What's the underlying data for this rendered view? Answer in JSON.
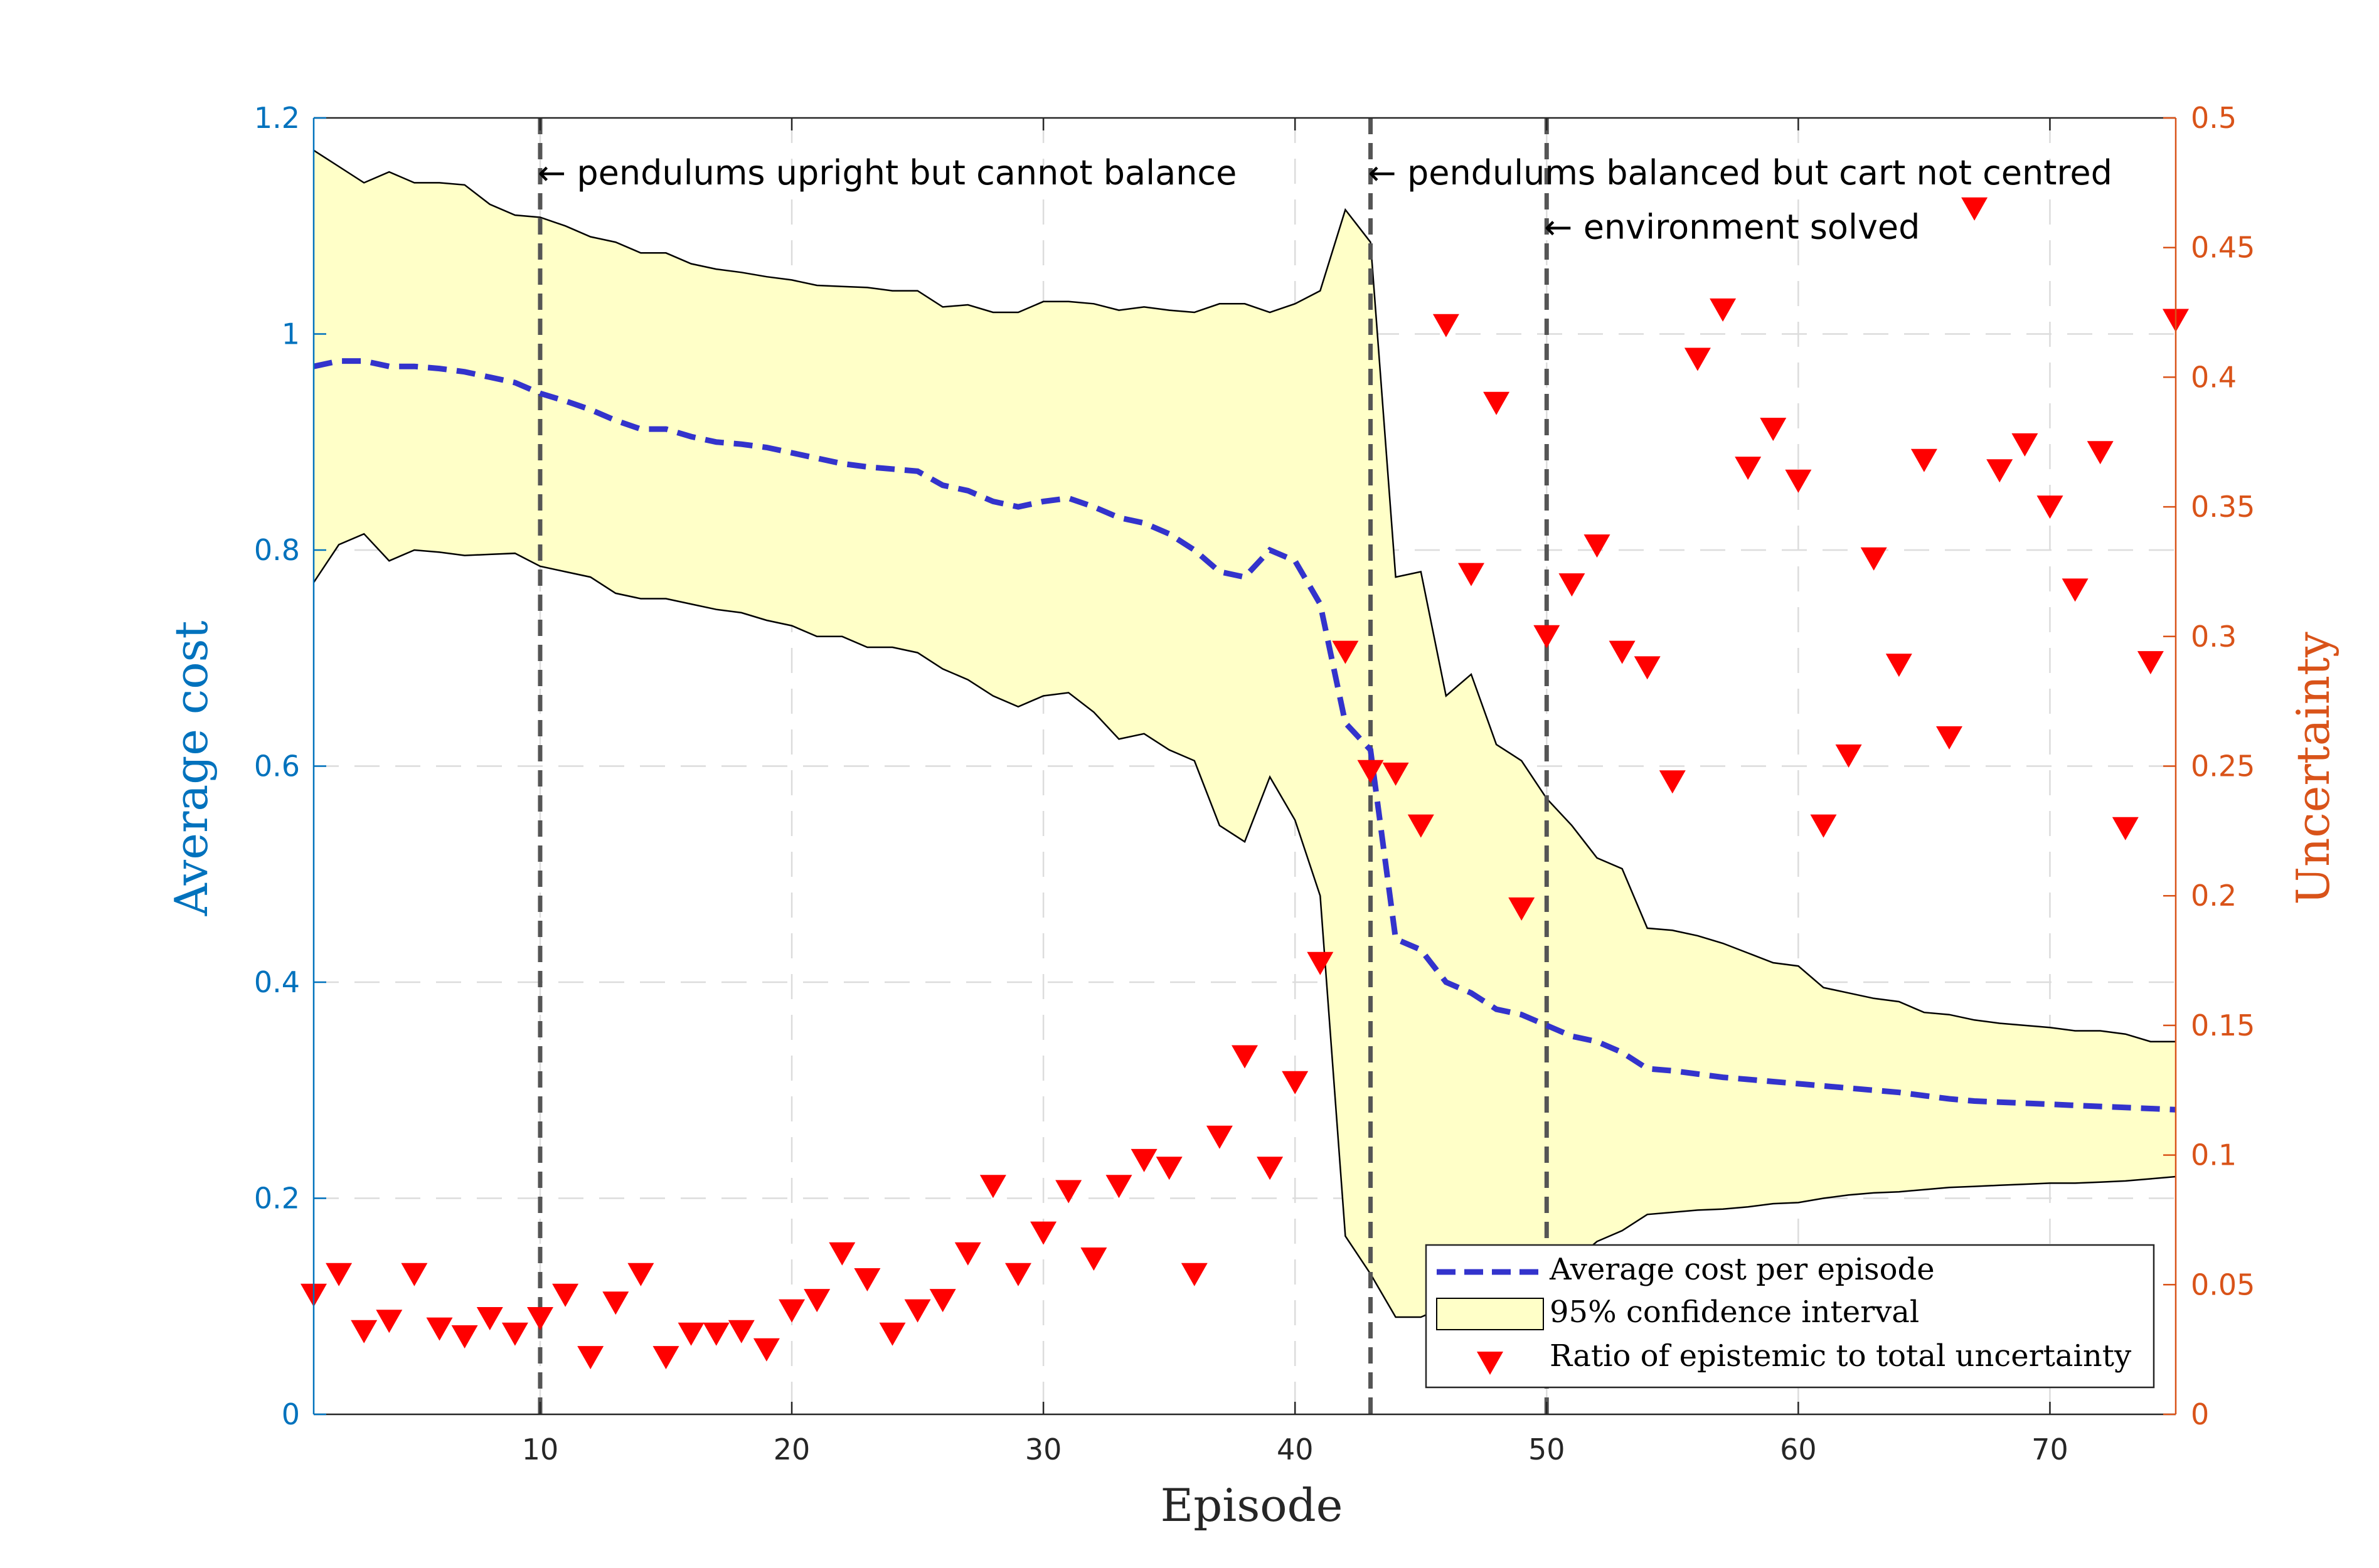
{
  "chart_data": {
    "type": "line",
    "xlabel": "Episode",
    "ylabel_left": "Average cost",
    "ylabel_right": "Uncertainty",
    "xlim": [
      1,
      75
    ],
    "ylim_left": [
      0,
      1.2
    ],
    "ylim_right": [
      0,
      0.5
    ],
    "x_ticks": [
      10,
      20,
      30,
      40,
      50,
      60,
      70
    ],
    "y_ticks_left": [
      "0",
      "0.2",
      "0.4",
      "0.6",
      "0.8",
      "1",
      "1.2"
    ],
    "y_ticks_right": [
      "0",
      "0.05",
      "0.1",
      "0.15",
      "0.2",
      "0.25",
      "0.3",
      "0.35",
      "0.4",
      "0.45",
      "0.5"
    ],
    "grid": true,
    "colors": {
      "mean": "#3333CC",
      "band_fill": "#FFFFC8",
      "markers": "#FF0000",
      "left_axis": "#0072BD",
      "right_axis": "#D95319",
      "vline": "#555555"
    },
    "vlines": [
      10,
      43,
      50
    ],
    "annotations": [
      {
        "x": 10,
        "y": 1.15,
        "text": "← pendulums upright but cannot balance"
      },
      {
        "x": 43,
        "y": 1.15,
        "text": "← pendulums balanced but cart not centred"
      },
      {
        "x": 50,
        "y": 1.1,
        "text": "← environment solved"
      }
    ],
    "legend_position": "bottom-right",
    "series": [
      {
        "name": "Average cost per episode",
        "axis": "left",
        "style": "dashed",
        "x": [
          1,
          2,
          3,
          4,
          5,
          6,
          7,
          8,
          9,
          10,
          11,
          12,
          13,
          14,
          15,
          16,
          17,
          18,
          19,
          20,
          21,
          22,
          23,
          24,
          25,
          26,
          27,
          28,
          29,
          30,
          31,
          32,
          33,
          34,
          35,
          36,
          37,
          38,
          39,
          40,
          41,
          42,
          43,
          44,
          45,
          46,
          47,
          48,
          49,
          50,
          51,
          52,
          53,
          54,
          55,
          56,
          57,
          58,
          59,
          60,
          61,
          62,
          63,
          64,
          65,
          66,
          67,
          68,
          69,
          70,
          71,
          72,
          73,
          74,
          75
        ],
        "values": [
          0.97,
          0.975,
          0.975,
          0.97,
          0.97,
          0.968,
          0.965,
          0.96,
          0.955,
          0.945,
          0.938,
          0.93,
          0.92,
          0.912,
          0.912,
          0.905,
          0.9,
          0.898,
          0.895,
          0.89,
          0.885,
          0.88,
          0.877,
          0.875,
          0.873,
          0.86,
          0.855,
          0.845,
          0.84,
          0.845,
          0.848,
          0.84,
          0.83,
          0.825,
          0.815,
          0.8,
          0.78,
          0.775,
          0.8,
          0.79,
          0.75,
          0.64,
          0.615,
          0.44,
          0.43,
          0.4,
          0.39,
          0.375,
          0.37,
          0.36,
          0.35,
          0.345,
          0.335,
          0.32,
          0.318,
          0.315,
          0.312,
          0.31,
          0.308,
          0.306,
          0.304,
          0.302,
          0.3,
          0.298,
          0.295,
          0.292,
          0.29,
          0.289,
          0.288,
          0.287,
          0.286,
          0.285,
          0.284,
          0.283,
          0.282
        ]
      },
      {
        "name": "95% confidence interval",
        "axis": "left",
        "style": "band",
        "x": [
          1,
          2,
          3,
          4,
          5,
          6,
          7,
          8,
          9,
          10,
          11,
          12,
          13,
          14,
          15,
          16,
          17,
          18,
          19,
          20,
          21,
          22,
          23,
          24,
          25,
          26,
          27,
          28,
          29,
          30,
          31,
          32,
          33,
          34,
          35,
          36,
          37,
          38,
          39,
          40,
          41,
          42,
          43,
          44,
          45,
          46,
          47,
          48,
          49,
          50,
          51,
          52,
          53,
          54,
          55,
          56,
          57,
          58,
          59,
          60,
          61,
          62,
          63,
          64,
          65,
          66,
          67,
          68,
          69,
          70,
          71,
          72,
          73,
          74,
          75
        ],
        "upper": [
          1.17,
          1.155,
          1.14,
          1.15,
          1.14,
          1.14,
          1.138,
          1.12,
          1.11,
          1.108,
          1.1,
          1.09,
          1.085,
          1.075,
          1.075,
          1.065,
          1.06,
          1.057,
          1.053,
          1.05,
          1.045,
          1.044,
          1.043,
          1.04,
          1.04,
          1.025,
          1.027,
          1.02,
          1.02,
          1.03,
          1.03,
          1.028,
          1.022,
          1.025,
          1.022,
          1.02,
          1.028,
          1.028,
          1.02,
          1.028,
          1.04,
          1.115,
          1.085,
          0.775,
          0.78,
          0.665,
          0.685,
          0.62,
          0.605,
          0.57,
          0.545,
          0.515,
          0.505,
          0.45,
          0.448,
          0.443,
          0.436,
          0.427,
          0.418,
          0.415,
          0.395,
          0.39,
          0.385,
          0.382,
          0.372,
          0.37,
          0.365,
          0.362,
          0.36,
          0.358,
          0.355,
          0.355,
          0.352,
          0.345,
          0.345
        ],
        "lower": [
          0.77,
          0.805,
          0.815,
          0.79,
          0.8,
          0.798,
          0.795,
          0.796,
          0.797,
          0.785,
          0.78,
          0.775,
          0.76,
          0.755,
          0.755,
          0.75,
          0.745,
          0.742,
          0.735,
          0.73,
          0.72,
          0.72,
          0.71,
          0.71,
          0.705,
          0.69,
          0.68,
          0.665,
          0.655,
          0.665,
          0.668,
          0.65,
          0.625,
          0.63,
          0.615,
          0.605,
          0.545,
          0.53,
          0.59,
          0.55,
          0.48,
          0.165,
          0.13,
          0.09,
          0.09,
          0.1,
          0.11,
          0.12,
          0.125,
          0.13,
          0.14,
          0.16,
          0.17,
          0.185,
          0.187,
          0.189,
          0.19,
          0.192,
          0.195,
          0.196,
          0.2,
          0.203,
          0.205,
          0.206,
          0.208,
          0.21,
          0.211,
          0.212,
          0.213,
          0.214,
          0.214,
          0.215,
          0.216,
          0.218,
          0.22
        ]
      },
      {
        "name": "Ratio of epistemic to total uncertainty",
        "axis": "right",
        "style": "markers",
        "x": [
          1,
          2,
          3,
          4,
          5,
          6,
          7,
          8,
          9,
          10,
          11,
          12,
          13,
          14,
          15,
          16,
          17,
          18,
          19,
          20,
          21,
          22,
          23,
          24,
          25,
          26,
          27,
          28,
          29,
          30,
          31,
          32,
          33,
          34,
          35,
          36,
          37,
          38,
          39,
          40,
          41,
          42,
          43,
          44,
          45,
          46,
          47,
          48,
          49,
          50,
          51,
          52,
          53,
          54,
          55,
          56,
          57,
          58,
          59,
          60,
          61,
          62,
          63,
          64,
          65,
          66,
          67,
          68,
          69,
          70,
          71,
          72,
          73,
          74,
          75
        ],
        "values": [
          0.046,
          0.054,
          0.032,
          0.036,
          0.054,
          0.033,
          0.03,
          0.037,
          0.031,
          0.037,
          0.046,
          0.022,
          0.043,
          0.054,
          0.022,
          0.031,
          0.031,
          0.032,
          0.025,
          0.04,
          0.044,
          0.062,
          0.052,
          0.031,
          0.04,
          0.044,
          0.062,
          0.088,
          0.054,
          0.07,
          0.086,
          0.06,
          0.088,
          0.098,
          0.095,
          0.054,
          0.107,
          0.138,
          0.095,
          0.128,
          0.174,
          0.294,
          0.248,
          0.247,
          0.227,
          0.42,
          0.324,
          0.39,
          0.195,
          0.3,
          0.32,
          0.335,
          0.294,
          0.288,
          0.244,
          0.407,
          0.426,
          0.365,
          0.38,
          0.36,
          0.227,
          0.254,
          0.33,
          0.289,
          0.368,
          0.261,
          0.465,
          0.364,
          0.374,
          0.35,
          0.318,
          0.371,
          0.226,
          0.29,
          0.422
        ]
      }
    ]
  }
}
